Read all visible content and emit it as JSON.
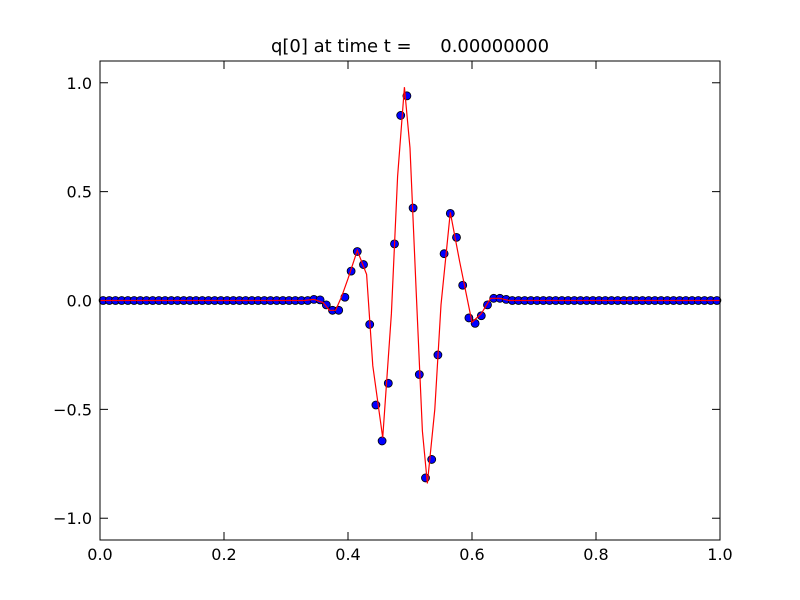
{
  "chart_data": {
    "type": "line",
    "title": "q[0] at time t =     0.00000000",
    "xlim": [
      0,
      1
    ],
    "ylim": [
      -1.1,
      1.1
    ],
    "xticks": [
      {
        "value": 0,
        "label": "0.0"
      },
      0.2,
      0.4,
      0.6,
      0.8,
      {
        "value": 1,
        "label": "1.0"
      }
    ],
    "yticks": [
      {
        "value": -1,
        "label": "−1.0"
      },
      {
        "value": -0.5,
        "label": "−0.5"
      },
      {
        "value": 0,
        "label": "0.0"
      },
      0.5,
      {
        "value": 1,
        "label": "1.0"
      }
    ],
    "series": [
      {
        "style": "markers",
        "color": "#0000ff",
        "x": [
          0.005,
          0.015,
          0.025,
          0.035,
          0.045,
          0.055,
          0.065,
          0.075,
          0.085,
          0.095,
          0.105,
          0.115,
          0.125,
          0.135,
          0.145,
          0.155,
          0.165,
          0.175,
          0.185,
          0.195,
          0.205,
          0.215,
          0.225,
          0.235,
          0.245,
          0.255,
          0.265,
          0.275,
          0.285,
          0.295,
          0.305,
          0.315,
          0.325,
          0.335,
          0.345,
          0.355,
          0.365,
          0.375,
          0.385,
          0.395,
          0.405,
          0.415,
          0.425,
          0.435,
          0.445,
          0.455,
          0.465,
          0.475,
          0.485,
          0.495,
          0.505,
          0.515,
          0.525,
          0.535,
          0.545,
          0.555,
          0.565,
          0.575,
          0.585,
          0.595,
          0.605,
          0.615,
          0.625,
          0.635,
          0.645,
          0.655,
          0.665,
          0.675,
          0.685,
          0.695,
          0.705,
          0.715,
          0.725,
          0.735,
          0.745,
          0.755,
          0.765,
          0.775,
          0.785,
          0.795,
          0.805,
          0.815,
          0.825,
          0.835,
          0.845,
          0.855,
          0.865,
          0.875,
          0.885,
          0.895,
          0.905,
          0.915,
          0.925,
          0.935,
          0.945,
          0.955,
          0.965,
          0.975,
          0.985,
          0.995
        ],
        "values": [
          0,
          0,
          0,
          0,
          0,
          0,
          0,
          0,
          0,
          0,
          0,
          0,
          0,
          0,
          0,
          0,
          0,
          0,
          0,
          0,
          0,
          0,
          0,
          0,
          0,
          0,
          0,
          0,
          0,
          0,
          0,
          0,
          0,
          0,
          0.005,
          0.003,
          -0.02,
          -0.045,
          -0.045,
          0.015,
          0.135,
          0.225,
          0.165,
          -0.11,
          -0.48,
          -0.645,
          -0.38,
          0.26,
          0.85,
          0.94,
          0.425,
          -0.34,
          -0.815,
          -0.73,
          -0.25,
          0.215,
          0.4,
          0.29,
          0.07,
          -0.08,
          -0.105,
          -0.07,
          -0.02,
          0.01,
          0.01,
          0.005,
          0,
          0,
          0,
          0,
          0,
          0,
          0,
          0,
          0,
          0,
          0,
          0,
          0,
          0,
          0,
          0,
          0,
          0,
          0,
          0,
          0,
          0,
          0,
          0,
          0,
          0,
          0,
          0,
          0,
          0,
          0,
          0,
          0,
          0
        ]
      },
      {
        "style": "line",
        "color": "#ff0000",
        "x": [
          0,
          0.33,
          0.345,
          0.36,
          0.37,
          0.38,
          0.39,
          0.4,
          0.415,
          0.43,
          0.44,
          0.456,
          0.47,
          0.48,
          0.491,
          0.5,
          0.51,
          0.52,
          0.528,
          0.54,
          0.55,
          0.565,
          0.58,
          0.6,
          0.615,
          0.63,
          0.645,
          0.66,
          1
        ],
        "values": [
          0,
          0,
          0.005,
          -0.01,
          -0.045,
          -0.045,
          0.02,
          0.1,
          0.23,
          0.12,
          -0.3,
          -0.63,
          -0.06,
          0.57,
          0.98,
          0.7,
          0.04,
          -0.6,
          -0.84,
          -0.5,
          -0.02,
          0.405,
          0.18,
          -0.1,
          -0.06,
          0.01,
          0.01,
          0,
          0
        ]
      }
    ]
  }
}
